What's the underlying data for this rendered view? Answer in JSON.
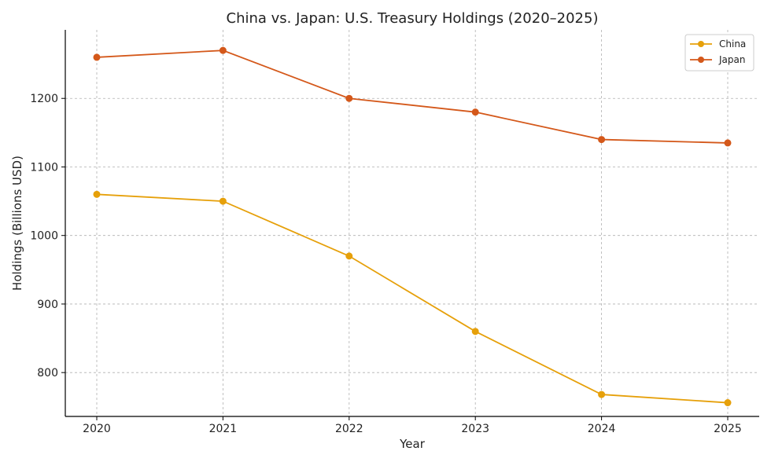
{
  "chart_data": {
    "type": "line",
    "title": "China vs. Japan: U.S. Treasury Holdings (2020–2025)",
    "xlabel": "Year",
    "ylabel": "Holdings (Billions USD)",
    "categories": [
      "2020",
      "2021",
      "2022",
      "2023",
      "2024",
      "2025"
    ],
    "y_ticks": [
      800,
      900,
      1000,
      1100,
      1200
    ],
    "ylim": [
      736,
      1300
    ],
    "grid": true,
    "legend_position": "top-right",
    "series": [
      {
        "name": "China",
        "color": "#E6A00A",
        "values": [
          1060,
          1050,
          970,
          860,
          768,
          756
        ]
      },
      {
        "name": "Japan",
        "color": "#D4581A",
        "values": [
          1260,
          1270,
          1200,
          1180,
          1140,
          1135
        ]
      }
    ]
  }
}
